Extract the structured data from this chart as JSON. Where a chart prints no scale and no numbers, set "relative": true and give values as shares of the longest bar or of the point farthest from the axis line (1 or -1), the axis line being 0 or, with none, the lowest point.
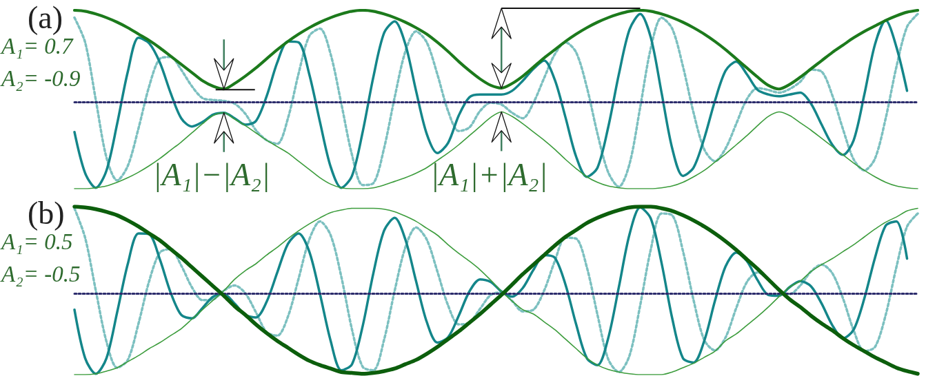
{
  "chart_data": [
    {
      "type": "line",
      "title": "(a)",
      "relative": true,
      "marker": "none",
      "tick_labels": false,
      "categories": [
        null,
        null,
        null,
        null,
        null,
        null,
        null,
        null,
        null,
        null,
        null,
        null,
        null,
        null,
        null,
        null,
        null,
        null,
        null,
        null,
        null,
        null,
        null,
        null,
        null,
        null,
        null,
        null,
        null,
        null,
        null,
        null,
        null,
        null,
        null,
        null,
        null,
        null,
        null,
        null,
        null,
        null,
        null,
        null,
        null,
        null,
        null,
        null,
        null,
        null,
        null,
        null,
        null,
        null,
        null,
        null,
        null,
        null,
        null,
        null,
        null,
        null,
        null,
        null,
        null,
        null,
        null,
        null,
        null,
        null,
        null,
        null,
        null,
        null,
        null,
        null,
        null,
        null,
        null,
        null
      ],
      "series": [
        {
          "color": "#7cc0c0",
          "line_style": "dotted",
          "values": [
            0.92,
            0.65,
            0.02,
            -0.61,
            -0.86,
            -0.7,
            -0.29,
            0.17,
            0.47,
            0.49,
            0.35,
            0.17,
            0.04,
            0.02,
            0.01,
            -0.02,
            -0.13,
            -0.31,
            -0.42,
            -0.46,
            -0.18,
            0.31,
            0.72,
            0.8,
            0.52,
            -0.02,
            -0.58,
            -0.91,
            -0.89,
            -0.51,
            0.05,
            0.55,
            0.77,
            0.65,
            0.3,
            -0.1,
            -0.32,
            -0.28,
            -0.1,
            -0.01,
            -0.03,
            -0.12,
            -0.18,
            -0.01,
            0.26,
            0.52,
            0.65,
            0.54,
            0.16,
            -0.35,
            -0.77,
            -0.93,
            -0.68,
            -0.06,
            0.59,
            0.92,
            0.8,
            0.39,
            -0.12,
            -0.52,
            -0.65,
            -0.51,
            -0.24,
            0.03,
            0.15,
            0.13,
            0.1,
            0.14,
            0.22,
            0.35,
            0.33,
            0.07,
            -0.3,
            -0.63,
            -0.75,
            -0.62,
            -0.18,
            0.38,
            0.82,
            0.96
          ]
        },
        {
          "color": "#14868a",
          "values": [
            -0.33,
            -0.78,
            -0.94,
            -0.75,
            -0.24,
            0.33,
            0.7,
            0.64,
            0.43,
            0.1,
            -0.18,
            -0.27,
            -0.22,
            -0.14,
            -0.12,
            -0.18,
            -0.25,
            -0.21,
            0.06,
            0.43,
            0.66,
            0.65,
            0.3,
            -0.22,
            -0.71,
            -0.94,
            -0.81,
            -0.33,
            0.27,
            0.75,
            0.88,
            0.63,
            0.12,
            -0.35,
            -0.56,
            -0.45,
            -0.15,
            0.05,
            0.08,
            0.08,
            0.08,
            0.12,
            0.23,
            0.36,
            0.45,
            0.24,
            -0.17,
            -0.6,
            -0.82,
            -0.72,
            -0.28,
            0.3,
            0.79,
            0.96,
            0.7,
            0.1,
            -0.51,
            -0.81,
            -0.72,
            -0.4,
            0.01,
            0.34,
            0.44,
            0.3,
            0.13,
            0.08,
            0.06,
            0.08,
            0.1,
            -0.02,
            -0.25,
            -0.47,
            -0.58,
            -0.42,
            0.08,
            0.63,
            0.89,
            0.6,
            0.12,
            null
          ]
        },
        {
          "color": "#3c9c3c",
          "values": [
            -0.95,
            -0.95,
            -0.94,
            -0.92,
            -0.88,
            -0.83,
            -0.77,
            -0.7,
            -0.62,
            -0.53,
            -0.44,
            -0.34,
            -0.24,
            -0.15,
            -0.12,
            -0.19,
            -0.26,
            -0.34,
            -0.42,
            -0.49,
            -0.56,
            -0.65,
            -0.74,
            -0.83,
            -0.9,
            -0.94,
            -0.95,
            -0.95,
            -0.94,
            -0.91,
            -0.87,
            -0.83,
            -0.78,
            -0.72,
            -0.64,
            -0.56,
            -0.47,
            -0.37,
            -0.27,
            -0.17,
            -0.11,
            -0.16,
            -0.24,
            -0.33,
            -0.42,
            -0.52,
            -0.63,
            -0.73,
            -0.82,
            -0.88,
            -0.92,
            -0.94,
            -0.95,
            -0.95,
            -0.95,
            -0.94,
            -0.92,
            -0.88,
            -0.82,
            -0.75,
            -0.66,
            -0.57,
            -0.47,
            -0.37,
            -0.26,
            -0.16,
            -0.11,
            -0.15,
            -0.23,
            -0.31,
            -0.4,
            -0.49,
            -0.58,
            -0.67,
            -0.75,
            -0.82,
            -0.88,
            -0.92,
            -0.94,
            -0.95
          ]
        },
        {
          "color": "#1c7a1c",
          "values": [
            1.0,
            0.99,
            0.96,
            0.92,
            0.87,
            0.81,
            0.74,
            0.67,
            0.59,
            0.5,
            0.41,
            0.32,
            0.23,
            0.17,
            0.14,
            0.2,
            0.28,
            0.37,
            0.47,
            0.57,
            0.66,
            0.74,
            0.81,
            0.87,
            0.92,
            0.96,
            0.99,
            1.0,
            0.99,
            0.96,
            0.92,
            0.87,
            0.81,
            0.74,
            0.65,
            0.55,
            0.44,
            0.34,
            0.25,
            0.18,
            0.15,
            0.2,
            0.28,
            0.38,
            0.48,
            0.57,
            0.66,
            0.74,
            0.81,
            0.87,
            0.92,
            0.96,
            0.99,
            1.0,
            0.99,
            0.96,
            0.92,
            0.87,
            0.81,
            0.74,
            0.66,
            0.57,
            0.47,
            0.37,
            0.27,
            0.18,
            0.14,
            0.19,
            0.27,
            0.36,
            0.45,
            0.54,
            0.62,
            0.7,
            0.77,
            0.83,
            0.89,
            0.94,
            0.98,
            1.0
          ]
        }
      ],
      "ref_lines": [
        {
          "axis": "y",
          "value": 0,
          "color": "#2c2c6c",
          "line_style": "dotted"
        }
      ],
      "annotations": [
        "A₁= 0.7",
        "A₂= -0.9",
        "|A₁|−|A₂|",
        "|A₁|+|A₂|"
      ]
    },
    {
      "type": "line",
      "title": "(b)",
      "relative": true,
      "marker": "none",
      "tick_labels": false,
      "categories": [
        null,
        null,
        null,
        null,
        null,
        null,
        null,
        null,
        null,
        null,
        null,
        null,
        null,
        null,
        null,
        null,
        null,
        null,
        null,
        null,
        null,
        null,
        null,
        null,
        null,
        null,
        null,
        null,
        null,
        null,
        null,
        null,
        null,
        null,
        null,
        null,
        null,
        null,
        null,
        null,
        null,
        null,
        null,
        null,
        null,
        null,
        null,
        null,
        null,
        null,
        null,
        null,
        null,
        null,
        null,
        null,
        null,
        null,
        null,
        null,
        null,
        null,
        null,
        null,
        null,
        null,
        null,
        null,
        null,
        null,
        null,
        null,
        null,
        null,
        null,
        null,
        null,
        null,
        null,
        null
      ],
      "series": [
        {
          "color": "#7cc0c0",
          "line_style": "dotted",
          "values": [
            0.98,
            0.64,
            0.03,
            -0.56,
            -0.86,
            -0.77,
            -0.35,
            0.14,
            0.47,
            0.51,
            0.32,
            0.07,
            -0.08,
            -0.07,
            0.03,
            0.09,
            0.0,
            -0.22,
            -0.45,
            -0.49,
            -0.27,
            0.17,
            0.62,
            0.83,
            0.67,
            0.19,
            -0.42,
            -0.85,
            -0.89,
            -0.54,
            0.03,
            0.53,
            0.76,
            0.62,
            0.25,
            -0.14,
            -0.36,
            -0.34,
            -0.18,
            -0.02,
            0.01,
            -0.09,
            -0.21,
            -0.19,
            0.03,
            0.37,
            0.64,
            0.63,
            0.3,
            -0.25,
            -0.76,
            -0.91,
            -0.72,
            -0.14,
            0.51,
            0.92,
            0.9,
            0.49,
            -0.08,
            -0.54,
            -0.66,
            -0.51,
            -0.17,
            0.13,
            0.24,
            0.16,
            0.03,
            -0.01,
            0.09,
            0.25,
            0.33,
            0.23,
            -0.06,
            -0.43,
            -0.67,
            -0.62,
            -0.25,
            0.3,
            0.77,
            0.92
          ]
        },
        {
          "color": "#14868a",
          "values": [
            -0.19,
            -0.75,
            -0.93,
            -0.75,
            -0.22,
            0.34,
            0.69,
            0.68,
            0.39,
            0.01,
            -0.25,
            -0.29,
            -0.17,
            -0.04,
            -0.01,
            -0.12,
            -0.25,
            -0.28,
            -0.1,
            0.24,
            0.57,
            0.69,
            0.48,
            -0.01,
            -0.55,
            -0.89,
            -0.82,
            -0.38,
            0.23,
            0.72,
            0.87,
            0.62,
            0.14,
            -0.33,
            -0.57,
            -0.51,
            -0.26,
            0.02,
            0.16,
            0.13,
            0.02,
            -0.04,
            0.06,
            0.27,
            0.44,
            0.41,
            0.1,
            -0.36,
            -0.75,
            -0.83,
            -0.52,
            0.07,
            0.68,
            0.99,
            0.86,
            0.35,
            -0.29,
            -0.75,
            -0.8,
            -0.55,
            -0.09,
            0.31,
            0.47,
            0.37,
            0.15,
            -0.02,
            -0.03,
            0.07,
            0.14,
            0.08,
            -0.12,
            -0.37,
            -0.52,
            -0.42,
            -0.06,
            0.41,
            0.78,
            0.83,
            0.4,
            null
          ]
        },
        {
          "color": "#3c9c3c",
          "values": [
            -0.94,
            -0.94,
            -0.93,
            -0.9,
            -0.86,
            -0.79,
            -0.72,
            -0.64,
            -0.57,
            -0.49,
            -0.41,
            -0.3,
            -0.19,
            -0.08,
            0.03,
            0.16,
            0.26,
            0.34,
            0.44,
            0.53,
            0.63,
            0.72,
            0.8,
            0.87,
            0.93,
            0.96,
            0.98,
            0.98,
            0.98,
            0.97,
            0.94,
            0.89,
            0.83,
            0.75,
            0.67,
            0.56,
            0.46,
            0.37,
            0.27,
            0.15,
            0.02,
            -0.09,
            -0.19,
            -0.24,
            -0.33,
            -0.42,
            -0.53,
            -0.64,
            -0.75,
            -0.83,
            -0.88,
            -0.91,
            -0.93,
            -0.94,
            -0.94,
            -0.94,
            -0.91,
            -0.86,
            -0.81,
            -0.74,
            -0.67,
            -0.55,
            -0.47,
            -0.37,
            -0.27,
            -0.16,
            -0.04,
            0.07,
            0.14,
            0.25,
            0.33,
            0.4,
            0.48,
            0.56,
            0.65,
            0.74,
            0.82,
            0.88,
            0.95,
            0.98
          ]
        },
        {
          "color": "#0c5e0c",
          "values": [
            1.0,
            0.99,
            0.97,
            0.94,
            0.9,
            0.84,
            0.77,
            0.69,
            0.61,
            0.51,
            0.41,
            0.3,
            0.19,
            0.08,
            -0.03,
            -0.15,
            -0.25,
            -0.36,
            -0.46,
            -0.55,
            -0.63,
            -0.71,
            -0.78,
            -0.83,
            -0.87,
            -0.91,
            -0.92,
            -0.93,
            -0.92,
            -0.9,
            -0.87,
            -0.82,
            -0.77,
            -0.7,
            -0.62,
            -0.53,
            -0.44,
            -0.34,
            -0.24,
            -0.13,
            -0.02,
            0.1,
            0.22,
            0.33,
            0.44,
            0.55,
            0.65,
            0.73,
            0.81,
            0.87,
            0.92,
            0.96,
            0.99,
            1.0,
            1.0,
            0.98,
            0.95,
            0.9,
            0.84,
            0.77,
            0.69,
            0.6,
            0.5,
            0.39,
            0.28,
            0.16,
            0.04,
            -0.07,
            -0.16,
            -0.26,
            -0.35,
            -0.43,
            -0.52,
            -0.6,
            -0.67,
            -0.74,
            -0.8,
            -0.86,
            -0.9,
            -0.93
          ]
        }
      ],
      "ref_lines": [
        {
          "axis": "y",
          "value": 0,
          "color": "#2c2c6c",
          "line_style": "dotted"
        }
      ],
      "annotations": [
        "A₁= 0.5",
        "A₂= -0.5"
      ]
    }
  ]
}
